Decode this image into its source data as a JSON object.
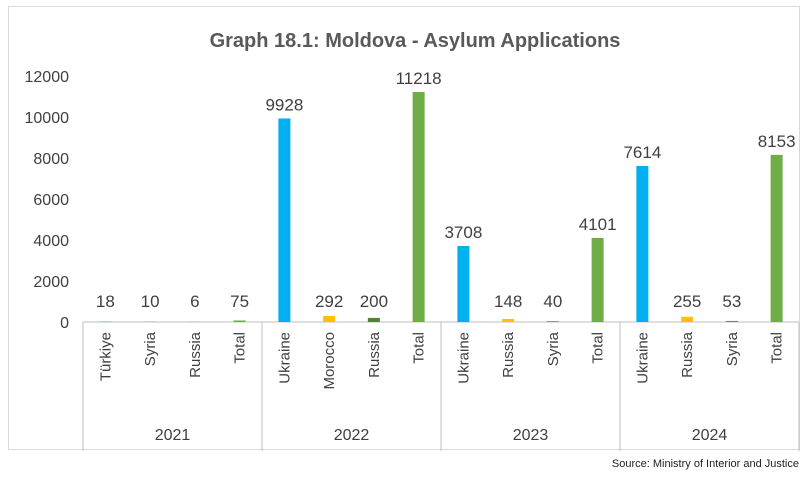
{
  "chart_data": {
    "type": "bar",
    "title": "Graph 18.1: Moldova - Asylum Applications",
    "xlabel": "",
    "ylabel": "",
    "ylim": [
      0,
      12000
    ],
    "yticks": [
      0,
      2000,
      4000,
      6000,
      8000,
      10000,
      12000
    ],
    "grid": false,
    "legend": "none",
    "groups": [
      {
        "year": "2021",
        "bars": [
          {
            "label": "Türkiye",
            "value": 18,
            "color": "#00b0f0"
          },
          {
            "label": "Syria",
            "value": 10,
            "color": "#7f7f7f"
          },
          {
            "label": "Russia",
            "value": 6,
            "color": "#548235"
          },
          {
            "label": "Total",
            "value": 75,
            "color": "#70ad47"
          }
        ]
      },
      {
        "year": "2022",
        "bars": [
          {
            "label": "Ukraine",
            "value": 9928,
            "color": "#00b0f0"
          },
          {
            "label": "Morocco",
            "value": 292,
            "color": "#ffc000"
          },
          {
            "label": "Russia",
            "value": 200,
            "color": "#548235"
          },
          {
            "label": "Total",
            "value": 11218,
            "color": "#70ad47"
          }
        ]
      },
      {
        "year": "2023",
        "bars": [
          {
            "label": "Ukraine",
            "value": 3708,
            "color": "#00b0f0"
          },
          {
            "label": "Russia",
            "value": 148,
            "color": "#ffc000"
          },
          {
            "label": "Syria",
            "value": 40,
            "color": "#7f7f7f"
          },
          {
            "label": "Total",
            "value": 4101,
            "color": "#70ad47"
          }
        ]
      },
      {
        "year": "2024",
        "bars": [
          {
            "label": "Ukraine",
            "value": 7614,
            "color": "#00b0f0"
          },
          {
            "label": "Russia",
            "value": 255,
            "color": "#ffc000"
          },
          {
            "label": "Syria",
            "value": 53,
            "color": "#7f7f7f"
          },
          {
            "label": "Total",
            "value": 8153,
            "color": "#70ad47"
          }
        ]
      }
    ]
  },
  "source": "Source: Ministry of Interior and Justice"
}
